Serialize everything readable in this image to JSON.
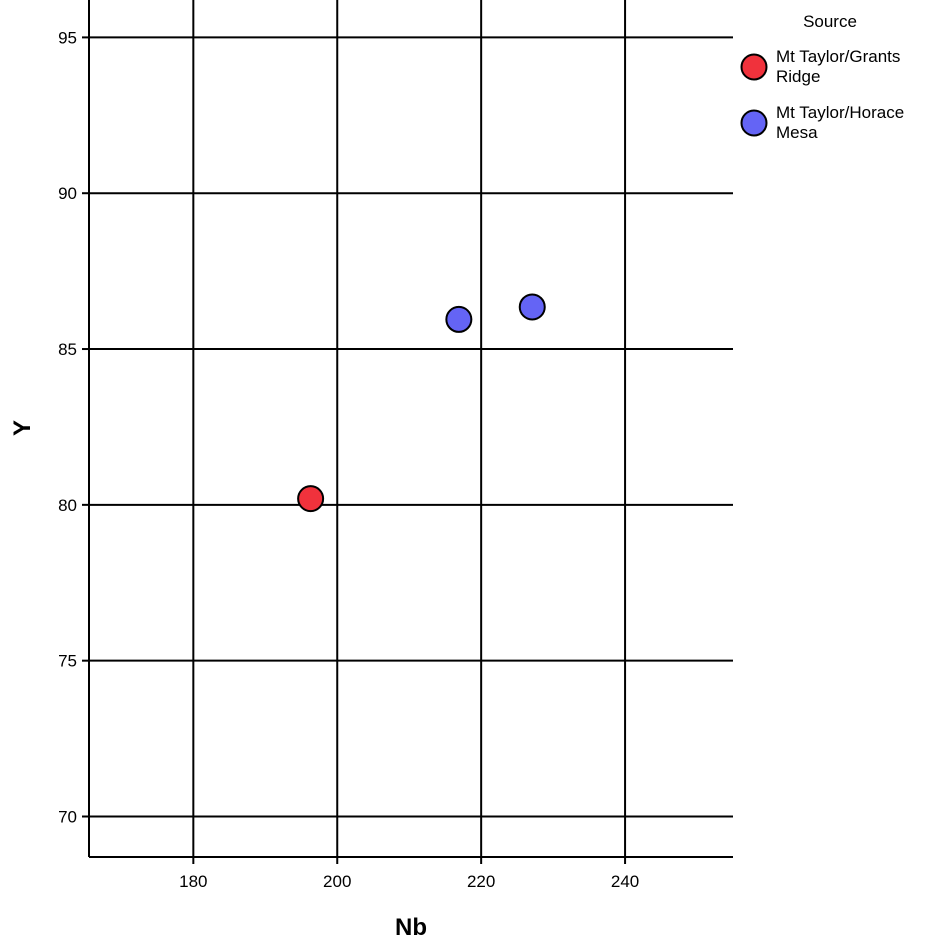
{
  "chart_data": {
    "type": "scatter",
    "title": "",
    "xlabel": "Nb",
    "ylabel": "Y",
    "xlim": [
      165.5,
      255
    ],
    "ylim": [
      68.7,
      96.2
    ],
    "xticks": [
      180,
      200,
      220,
      240
    ],
    "yticks": [
      70,
      75,
      80,
      85,
      90,
      95
    ],
    "grid": true,
    "legend": {
      "title": "Source",
      "placement": "top-right-outside",
      "entries": [
        {
          "line1": "Mt Taylor/Grants",
          "line2": "Ridge",
          "color": "#f0323c"
        },
        {
          "line1": "Mt Taylor/Horace",
          "line2": "Mesa",
          "color": "#6464f5"
        }
      ]
    },
    "series": [
      {
        "name": "Mt Taylor/Grants Ridge",
        "color": "#f0323c",
        "points": [
          {
            "x": 196.3,
            "y": 80.2
          }
        ]
      },
      {
        "name": "Mt Taylor/Horace Mesa",
        "color": "#6464f5",
        "points": [
          {
            "x": 216.9,
            "y": 85.95
          },
          {
            "x": 227.1,
            "y": 86.35
          }
        ]
      }
    ]
  }
}
